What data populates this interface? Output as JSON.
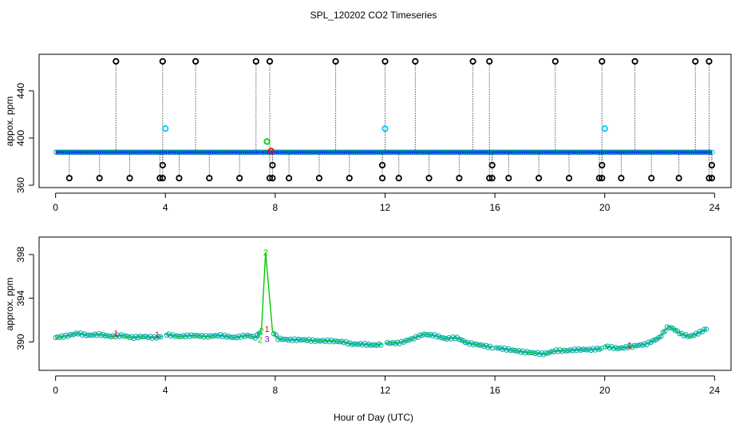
{
  "title": "SPL_120202  CO2 Timeseries",
  "xlabel": "Hour of Day (UTC)",
  "colors": {
    "axis": "#000000",
    "black": "#000000",
    "blue": "#0000ff",
    "cyan": "#00c8ff",
    "green": "#00cc00",
    "red": "#ff0000",
    "purple": "#9900cc",
    "teal": "#00aaaa"
  },
  "chart_data": [
    {
      "type": "scatter",
      "title": "SPL_120202  CO2 Timeseries",
      "xlabel": "Hour of Day (UTC)",
      "ylabel": "appox. ppm",
      "xlim": [
        -0.6,
        24.6
      ],
      "ylim": [
        358,
        471
      ],
      "xticks": [
        "0",
        "4",
        "8",
        "12",
        "16",
        "20",
        "24"
      ],
      "yticks": [
        "360",
        "400",
        "440"
      ],
      "baseline": 388,
      "high_spikes": [
        2.2,
        3.9,
        5.1,
        7.3,
        7.8,
        10.2,
        12.0,
        13.1,
        15.2,
        15.8,
        18.2,
        19.9,
        21.1,
        23.3,
        23.8
      ],
      "low_spikes": [
        0.5,
        1.6,
        2.7,
        3.8,
        3.9,
        4.5,
        5.6,
        6.7,
        7.8,
        7.9,
        8.5,
        9.6,
        10.7,
        11.9,
        12.5,
        13.6,
        14.7,
        15.8,
        15.9,
        16.5,
        17.6,
        18.7,
        19.8,
        19.9,
        20.6,
        21.7,
        22.7,
        23.8,
        23.9
      ],
      "high_value": 465,
      "low_value": 366,
      "mid_dropouts": [
        3.9,
        7.9,
        11.9,
        15.9,
        19.9,
        23.9
      ],
      "mid_value": 377,
      "cyan_points": [
        {
          "x": 4.0,
          "y": 408
        },
        {
          "x": 12.0,
          "y": 408
        },
        {
          "x": 20.0,
          "y": 408
        }
      ],
      "green_points": [
        {
          "x": 7.7,
          "y": 397
        }
      ],
      "red_points": [
        {
          "x": 7.85,
          "y": 389
        }
      ]
    },
    {
      "type": "line",
      "xlabel": "Hour of Day (UTC)",
      "ylabel": "approx. ppm",
      "xlim": [
        -0.6,
        24.6
      ],
      "ylim": [
        387.4,
        399.6
      ],
      "xticks": [
        "0",
        "4",
        "8",
        "12",
        "16",
        "20",
        "24"
      ],
      "yticks": [
        "390",
        "394",
        "398"
      ],
      "series": [
        {
          "name": "main",
          "x": [
            0.0,
            0.5,
            0.8,
            1.2,
            1.6,
            2.0,
            2.4,
            2.8,
            3.2,
            3.6,
            3.9,
            4.0,
            4.5,
            5.0,
            5.5,
            6.0,
            6.5,
            7.0,
            7.3,
            7.5,
            7.65,
            7.9,
            8.1,
            8.5,
            9.0,
            9.5,
            10.0,
            10.5,
            10.8,
            11.2,
            11.6,
            11.9,
            12.0,
            12.5,
            13.0,
            13.4,
            13.8,
            14.2,
            14.6,
            15.0,
            15.5,
            15.9,
            16.0,
            16.5,
            17.0,
            17.4,
            17.8,
            18.2,
            18.6,
            19.0,
            19.5,
            19.9,
            20.0,
            20.5,
            21.0,
            21.5,
            22.0,
            22.3,
            22.5,
            22.8,
            23.1,
            23.4,
            23.7
          ],
          "y": [
            390.4,
            390.6,
            390.8,
            390.6,
            390.7,
            390.5,
            390.6,
            390.4,
            390.5,
            390.4,
            390.5,
            390.7,
            390.5,
            390.6,
            390.5,
            390.6,
            390.4,
            390.6,
            390.4,
            391.2,
            398.2,
            391.0,
            390.3,
            390.2,
            390.2,
            390.1,
            390.1,
            390.0,
            389.8,
            389.8,
            389.7,
            389.8,
            389.9,
            389.9,
            390.3,
            390.7,
            390.6,
            390.3,
            390.4,
            389.9,
            389.7,
            389.5,
            389.5,
            389.3,
            389.1,
            389.0,
            388.9,
            389.2,
            389.2,
            389.3,
            389.3,
            389.4,
            389.6,
            389.4,
            389.6,
            389.8,
            390.4,
            391.4,
            391.2,
            390.7,
            390.5,
            390.8,
            391.2
          ]
        }
      ]
    }
  ]
}
